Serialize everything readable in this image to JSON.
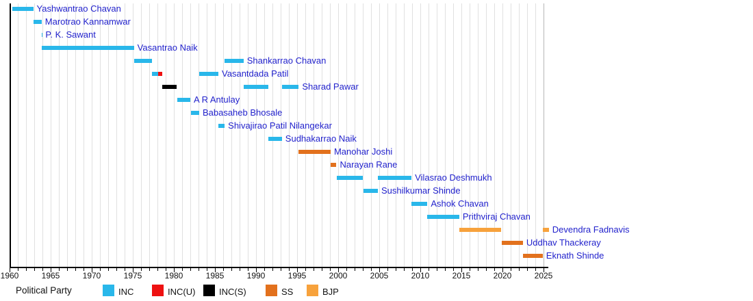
{
  "chart_data": {
    "type": "timeline",
    "subject": "Chief Ministers timeline by political party",
    "x_axis": {
      "min": 1960,
      "max": 2025.6,
      "major_tick_every": 5,
      "minor_tick_every": 1,
      "tick_labels": [
        "1960",
        "1965",
        "1970",
        "1975",
        "1980",
        "1985",
        "1990",
        "1995",
        "2000",
        "2005",
        "2010",
        "2015",
        "2020",
        "2025"
      ],
      "grid": "yearly-vertical-lines"
    },
    "legend": {
      "title": "Political Party",
      "position": "bottom",
      "entries": [
        {
          "label": "INC",
          "color": "#29b7ea"
        },
        {
          "label": "INC(U)",
          "color": "#ee1111"
        },
        {
          "label": "INC(S)",
          "color": "#000000"
        },
        {
          "label": "SS",
          "color": "#e2711d"
        },
        {
          "label": "BJP",
          "color": "#f7a23c"
        }
      ]
    },
    "name_link_color": "#2222cc",
    "rows": [
      {
        "name": "Yashwantrao Chavan",
        "segments": [
          {
            "start": 1960.33,
            "end": 1962.88,
            "party": "INC"
          }
        ]
      },
      {
        "name": "Marotrao Kannamwar",
        "segments": [
          {
            "start": 1962.89,
            "end": 1963.9,
            "party": "INC"
          }
        ]
      },
      {
        "name": "P. K. Sawant",
        "segments": [
          {
            "start": 1963.9,
            "end": 1963.95,
            "party": "INC"
          }
        ]
      },
      {
        "name": "Vasantrao Naik",
        "segments": [
          {
            "start": 1963.95,
            "end": 1975.14,
            "party": "INC"
          }
        ]
      },
      {
        "name": "Shankarrao Chavan",
        "segments": [
          {
            "start": 1975.14,
            "end": 1977.37,
            "party": "INC"
          },
          {
            "start": 1986.19,
            "end": 1988.48,
            "party": "INC"
          }
        ]
      },
      {
        "name": "Vasantdada Patil",
        "segments": [
          {
            "start": 1977.37,
            "end": 1978.1,
            "party": "INC"
          },
          {
            "start": 1978.1,
            "end": 1978.55,
            "party": "INC(U)"
          },
          {
            "start": 1983.09,
            "end": 1985.42,
            "party": "INC"
          }
        ]
      },
      {
        "name": "Sharad Pawar",
        "segments": [
          {
            "start": 1978.55,
            "end": 1980.3,
            "party": "INC(S)"
          },
          {
            "start": 1988.48,
            "end": 1991.48,
            "party": "INC"
          },
          {
            "start": 1993.18,
            "end": 1995.2,
            "party": "INC"
          }
        ]
      },
      {
        "name": "A R Antulay",
        "segments": [
          {
            "start": 1980.4,
            "end": 1982.0,
            "party": "INC"
          }
        ]
      },
      {
        "name": "Babasaheb Bhosale",
        "segments": [
          {
            "start": 1982.05,
            "end": 1983.08,
            "party": "INC"
          }
        ]
      },
      {
        "name": "Shivajirao Patil Nilangekar",
        "segments": [
          {
            "start": 1985.42,
            "end": 1986.18,
            "party": "INC"
          }
        ]
      },
      {
        "name": "Sudhakarrao Naik",
        "segments": [
          {
            "start": 1991.48,
            "end": 1993.15,
            "party": "INC"
          }
        ]
      },
      {
        "name": "Manohar Joshi",
        "segments": [
          {
            "start": 1995.2,
            "end": 1999.08,
            "party": "SS"
          }
        ]
      },
      {
        "name": "Narayan Rane",
        "segments": [
          {
            "start": 1999.08,
            "end": 1999.79,
            "party": "SS"
          }
        ]
      },
      {
        "name": "Vilasrao Deshmukh",
        "segments": [
          {
            "start": 1999.8,
            "end": 2003.04,
            "party": "INC"
          },
          {
            "start": 2004.83,
            "end": 2008.93,
            "party": "INC"
          }
        ]
      },
      {
        "name": "Sushilkumar Shinde",
        "segments": [
          {
            "start": 2003.05,
            "end": 2004.83,
            "party": "INC"
          }
        ]
      },
      {
        "name": "Ashok Chavan",
        "segments": [
          {
            "start": 2008.94,
            "end": 2010.86,
            "party": "INC"
          }
        ]
      },
      {
        "name": "Prithviraj Chavan",
        "segments": [
          {
            "start": 2010.86,
            "end": 2014.74,
            "party": "INC"
          }
        ]
      },
      {
        "name": "Devendra Fadnavis",
        "segments": [
          {
            "start": 2014.72,
            "end": 2019.85,
            "party": "BJP"
          },
          {
            "start": 2024.88,
            "end": 2025.65,
            "party": "BJP"
          }
        ]
      },
      {
        "name": "Uddhav Thackeray",
        "segments": [
          {
            "start": 2019.9,
            "end": 2022.49,
            "party": "SS"
          }
        ]
      },
      {
        "name": "Eknath Shinde",
        "segments": [
          {
            "start": 2022.5,
            "end": 2024.9,
            "party": "SS"
          }
        ]
      }
    ]
  }
}
